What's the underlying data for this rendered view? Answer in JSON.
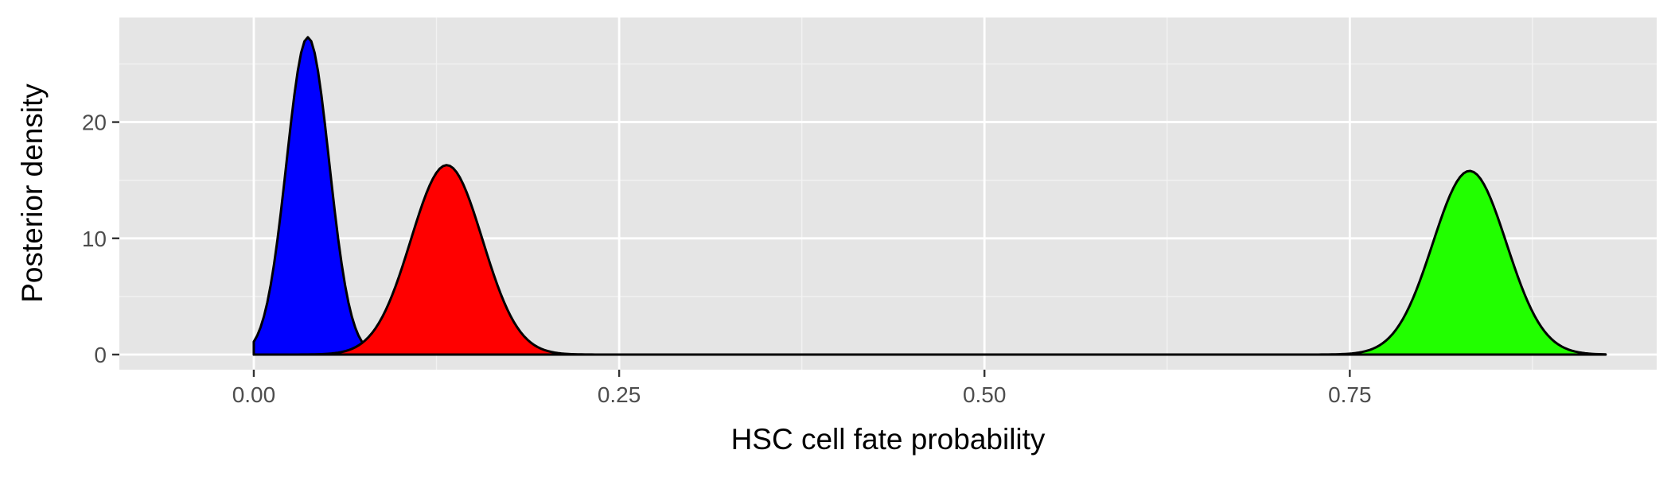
{
  "chart_data": {
    "type": "area",
    "title": "",
    "xlabel": "HSC cell fate probability",
    "ylabel": "Posterior density",
    "xlim": [
      -0.092,
      0.96
    ],
    "ylim": [
      -1.3,
      29
    ],
    "x_ticks": [
      0.0,
      0.25,
      0.5,
      0.75
    ],
    "x_tick_labels": [
      "0.00",
      "0.25",
      "0.50",
      "0.75"
    ],
    "y_ticks": [
      0,
      10,
      20
    ],
    "y_tick_labels": [
      "0",
      "10",
      "20"
    ],
    "grid": true,
    "legend": "none",
    "colors": {
      "panel_background": "#e5e5e5",
      "grid_major": "#ffffff",
      "grid_minor": "#f2f2f2",
      "outline": "#000000"
    },
    "series": [
      {
        "fill": "#0000ff",
        "mean": 0.037,
        "sd": 0.0146,
        "peak": 27.3
      },
      {
        "fill": "#ff0000",
        "mean": 0.132,
        "sd": 0.0245,
        "peak": 16.3
      },
      {
        "fill": "#22ff00",
        "mean": 0.832,
        "sd": 0.0252,
        "peak": 15.8
      }
    ]
  }
}
